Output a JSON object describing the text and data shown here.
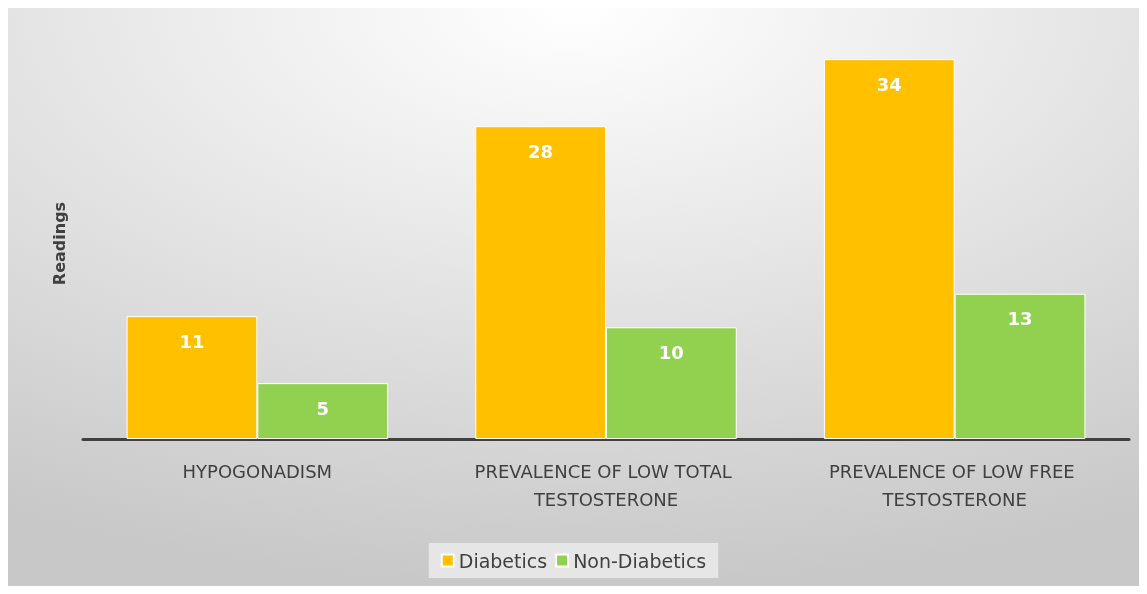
{
  "chart_data": {
    "type": "bar",
    "ylabel": "Readings",
    "categories": [
      "HYPOGONADISM",
      "PREVALENCE OF LOW TOTAL TESTOSTERONE",
      "PREVALENCE OF LOW FREE TESTOSTERONE"
    ],
    "series": [
      {
        "name": "Diabetics",
        "color": "#ffc000",
        "values": [
          11,
          28,
          34
        ]
      },
      {
        "name": "Non-Diabetics",
        "color": "#92d050",
        "values": [
          5,
          10,
          13
        ]
      }
    ],
    "data_labels": true,
    "grid": false,
    "legend": "bottom"
  }
}
